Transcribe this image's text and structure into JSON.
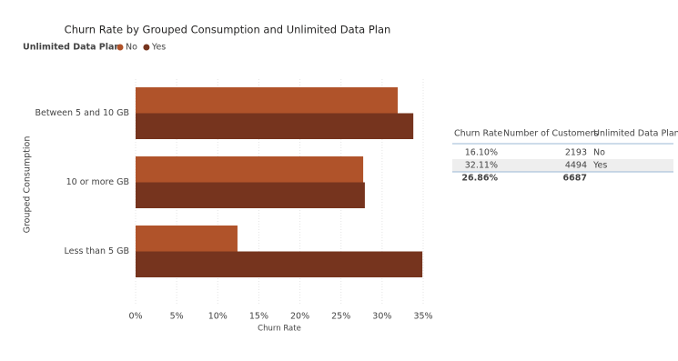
{
  "chart_data": {
    "type": "hbar",
    "title": "Churn Rate by Grouped Consumption and Unlimited Data Plan",
    "legend_title": "Unlimited Data Plan",
    "categories": [
      "Between 5 and 10 GB",
      "10 or more GB",
      "Less than 5 GB"
    ],
    "series": [
      {
        "name": "No",
        "color": "#b0532a",
        "values": [
          31.9,
          27.7,
          12.4
        ]
      },
      {
        "name": "Yes",
        "color": "#76341e",
        "values": [
          33.8,
          27.9,
          34.9
        ]
      }
    ],
    "xlabel": "Churn Rate",
    "ylabel": "Grouped Consumption",
    "xlim": [
      0,
      35
    ],
    "xticks": [
      {
        "value": 0,
        "label": "0%"
      },
      {
        "value": 5,
        "label": "5%"
      },
      {
        "value": 10,
        "label": "10%"
      },
      {
        "value": 15,
        "label": "15%"
      },
      {
        "value": 20,
        "label": "20%"
      },
      {
        "value": 25,
        "label": "25%"
      },
      {
        "value": 30,
        "label": "30%"
      },
      {
        "value": 35,
        "label": "35%"
      }
    ],
    "grid": true
  },
  "table": {
    "columns": [
      "Churn Rate",
      "Number of Customers",
      "Unlimited Data Plan"
    ],
    "rows": [
      [
        "16.10%",
        2193,
        "No"
      ],
      [
        "32.11%",
        4494,
        "Yes"
      ]
    ],
    "total": [
      "26.86%",
      6687
    ]
  }
}
